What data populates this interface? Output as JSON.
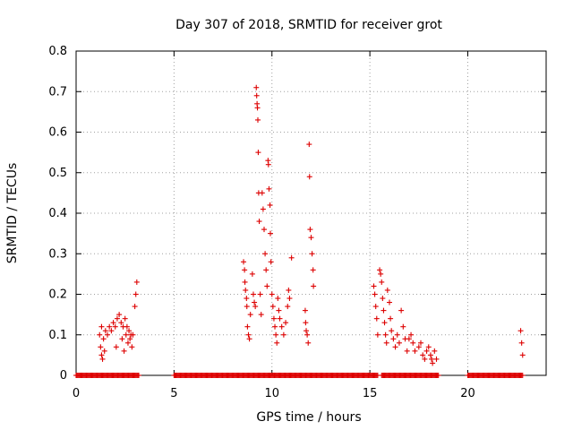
{
  "chart_data": {
    "type": "scatter",
    "title": "Day 307 of 2018, SRMTID for receiver grot",
    "xlabel": "GPS time / hours",
    "ylabel": "SRMTID / TECUs",
    "xlim": [
      0,
      24
    ],
    "ylim": [
      0,
      0.8
    ],
    "xticks": [
      0,
      5,
      10,
      15,
      20
    ],
    "yticks": [
      0,
      0.1,
      0.2,
      0.3,
      0.4,
      0.5,
      0.6,
      0.7,
      0.8
    ],
    "xtick_labels": [
      "0",
      "5",
      "10",
      "15",
      "20"
    ],
    "ytick_labels": [
      "0",
      "0.1",
      "0.2",
      "0.3",
      "0.4",
      "0.5",
      "0.6",
      "0.7",
      "0.8"
    ],
    "grid": true,
    "marker": "+",
    "color": "#dd0000",
    "series": [
      {
        "name": "SRMTID",
        "points": [
          [
            1.2,
            0.1
          ],
          [
            1.25,
            0.07
          ],
          [
            1.3,
            0.05
          ],
          [
            1.35,
            0.04
          ],
          [
            1.3,
            0.12
          ],
          [
            1.4,
            0.09
          ],
          [
            1.45,
            0.06
          ],
          [
            1.5,
            0.11
          ],
          [
            1.6,
            0.1
          ],
          [
            1.7,
            0.12
          ],
          [
            1.8,
            0.11
          ],
          [
            1.9,
            0.13
          ],
          [
            2.0,
            0.12
          ],
          [
            2.1,
            0.14
          ],
          [
            2.05,
            0.07
          ],
          [
            2.2,
            0.15
          ],
          [
            2.3,
            0.13
          ],
          [
            2.35,
            0.09
          ],
          [
            2.4,
            0.12
          ],
          [
            2.45,
            0.06
          ],
          [
            2.5,
            0.14
          ],
          [
            2.55,
            0.1
          ],
          [
            2.6,
            0.12
          ],
          [
            2.65,
            0.08
          ],
          [
            2.7,
            0.11
          ],
          [
            2.75,
            0.09
          ],
          [
            2.8,
            0.1
          ],
          [
            2.85,
            0.07
          ],
          [
            2.9,
            0.1
          ],
          [
            3.0,
            0.17
          ],
          [
            3.05,
            0.2
          ],
          [
            3.1,
            0.23
          ],
          [
            8.55,
            0.28
          ],
          [
            8.6,
            0.26
          ],
          [
            8.62,
            0.23
          ],
          [
            8.65,
            0.21
          ],
          [
            8.7,
            0.19
          ],
          [
            8.72,
            0.17
          ],
          [
            8.75,
            0.12
          ],
          [
            8.8,
            0.1
          ],
          [
            8.85,
            0.09
          ],
          [
            8.9,
            0.15
          ],
          [
            9.0,
            0.25
          ],
          [
            9.05,
            0.2
          ],
          [
            9.1,
            0.18
          ],
          [
            9.15,
            0.17
          ],
          [
            9.2,
            0.71
          ],
          [
            9.22,
            0.69
          ],
          [
            9.24,
            0.67
          ],
          [
            9.26,
            0.66
          ],
          [
            9.28,
            0.63
          ],
          [
            9.3,
            0.55
          ],
          [
            9.32,
            0.45
          ],
          [
            9.35,
            0.38
          ],
          [
            9.4,
            0.2
          ],
          [
            9.45,
            0.15
          ],
          [
            9.5,
            0.45
          ],
          [
            9.55,
            0.41
          ],
          [
            9.6,
            0.36
          ],
          [
            9.65,
            0.3
          ],
          [
            9.7,
            0.26
          ],
          [
            9.75,
            0.22
          ],
          [
            9.8,
            0.53
          ],
          [
            9.82,
            0.52
          ],
          [
            9.85,
            0.46
          ],
          [
            9.9,
            0.42
          ],
          [
            9.92,
            0.35
          ],
          [
            9.95,
            0.28
          ],
          [
            10.0,
            0.2
          ],
          [
            10.05,
            0.17
          ],
          [
            10.1,
            0.14
          ],
          [
            10.15,
            0.12
          ],
          [
            10.2,
            0.1
          ],
          [
            10.25,
            0.08
          ],
          [
            10.3,
            0.19
          ],
          [
            10.35,
            0.16
          ],
          [
            10.4,
            0.14
          ],
          [
            10.5,
            0.12
          ],
          [
            10.6,
            0.1
          ],
          [
            10.7,
            0.13
          ],
          [
            10.8,
            0.17
          ],
          [
            10.85,
            0.21
          ],
          [
            10.9,
            0.19
          ],
          [
            11.0,
            0.29
          ],
          [
            11.7,
            0.16
          ],
          [
            11.72,
            0.13
          ],
          [
            11.75,
            0.11
          ],
          [
            11.8,
            0.1
          ],
          [
            11.85,
            0.08
          ],
          [
            11.9,
            0.57
          ],
          [
            11.92,
            0.49
          ],
          [
            11.95,
            0.36
          ],
          [
            12.0,
            0.34
          ],
          [
            12.05,
            0.3
          ],
          [
            12.1,
            0.26
          ],
          [
            12.12,
            0.22
          ],
          [
            15.2,
            0.22
          ],
          [
            15.25,
            0.2
          ],
          [
            15.3,
            0.17
          ],
          [
            15.35,
            0.14
          ],
          [
            15.4,
            0.1
          ],
          [
            15.5,
            0.26
          ],
          [
            15.55,
            0.25
          ],
          [
            15.6,
            0.23
          ],
          [
            15.65,
            0.19
          ],
          [
            15.7,
            0.16
          ],
          [
            15.75,
            0.13
          ],
          [
            15.8,
            0.1
          ],
          [
            15.85,
            0.08
          ],
          [
            15.9,
            0.21
          ],
          [
            16.0,
            0.18
          ],
          [
            16.05,
            0.14
          ],
          [
            16.1,
            0.11
          ],
          [
            16.2,
            0.09
          ],
          [
            16.3,
            0.07
          ],
          [
            16.4,
            0.1
          ],
          [
            16.5,
            0.08
          ],
          [
            16.6,
            0.16
          ],
          [
            16.7,
            0.12
          ],
          [
            16.8,
            0.09
          ],
          [
            16.9,
            0.06
          ],
          [
            17.0,
            0.09
          ],
          [
            17.1,
            0.1
          ],
          [
            17.2,
            0.08
          ],
          [
            17.3,
            0.06
          ],
          [
            17.5,
            0.07
          ],
          [
            17.6,
            0.08
          ],
          [
            17.7,
            0.05
          ],
          [
            17.8,
            0.04
          ],
          [
            17.9,
            0.06
          ],
          [
            18.0,
            0.07
          ],
          [
            18.1,
            0.05
          ],
          [
            18.15,
            0.04
          ],
          [
            18.2,
            0.03
          ],
          [
            18.3,
            0.06
          ],
          [
            18.4,
            0.04
          ],
          [
            22.7,
            0.11
          ],
          [
            22.75,
            0.08
          ],
          [
            22.8,
            0.05
          ]
        ],
        "zero_ranges": [
          [
            0.0,
            3.2
          ],
          [
            5.0,
            15.4
          ],
          [
            15.6,
            18.5
          ],
          [
            20.0,
            22.8
          ]
        ]
      }
    ]
  }
}
